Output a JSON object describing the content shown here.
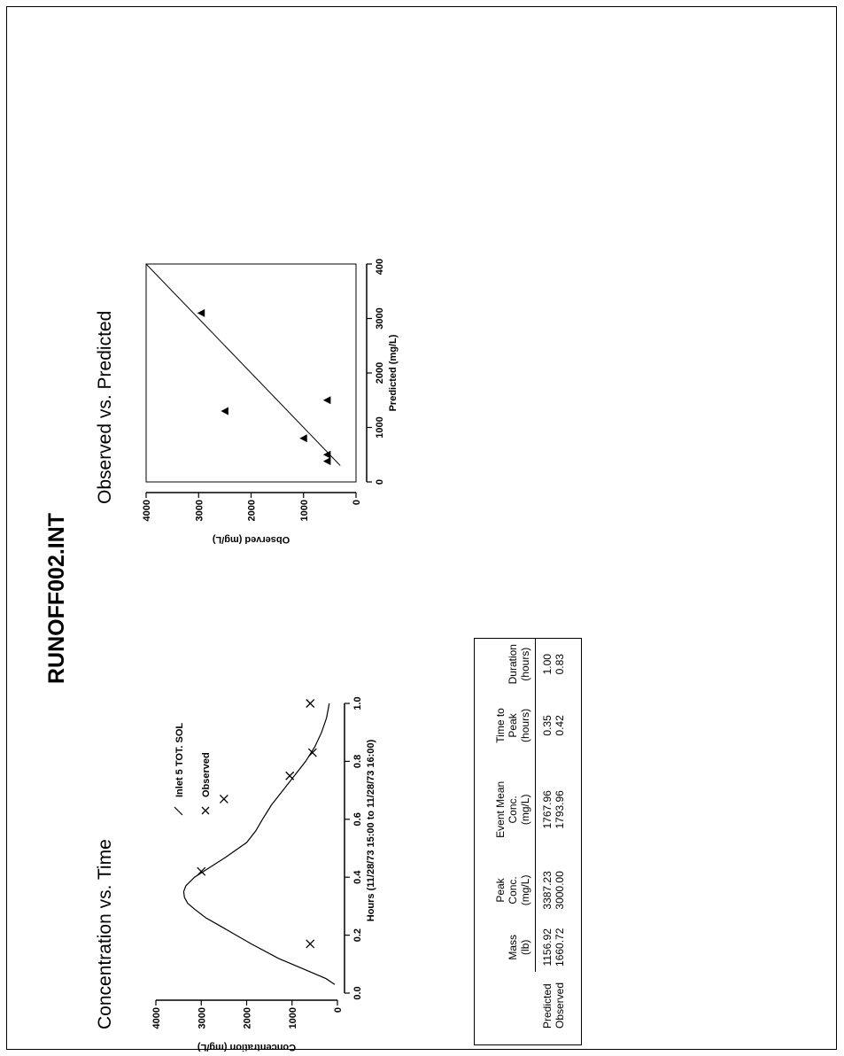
{
  "page": {
    "main_title": "RUNOFF002.INT"
  },
  "chart_data": [
    {
      "type": "line",
      "title": "Concentration vs. Time",
      "xlabel": "Hours (11/28/73 15:00 to 11/28/73 16:00)",
      "ylabel": "Concentration (mg/L)",
      "xlim": [
        0.0,
        1.0
      ],
      "ylim": [
        0,
        4000
      ],
      "x_ticks": [
        "0.0",
        "0.2",
        "0.4",
        "0.6",
        "0.8",
        "1.0"
      ],
      "y_ticks": [
        "0",
        "1000",
        "2000",
        "3000",
        "4000"
      ],
      "legend": [
        "Inlet 5 TOT. SOL",
        "Observed"
      ],
      "series": [
        {
          "name": "Inlet 5 TOT. SOL",
          "style": "line",
          "x": [
            0.03,
            0.05,
            0.08,
            0.12,
            0.17,
            0.22,
            0.26,
            0.29,
            0.31,
            0.33,
            0.35,
            0.37,
            0.4,
            0.43,
            0.47,
            0.52,
            0.56,
            0.6,
            0.65,
            0.7,
            0.75,
            0.8,
            0.85,
            0.9,
            0.95,
            1.0
          ],
          "y": [
            60,
            250,
            700,
            1300,
            1900,
            2450,
            2900,
            3150,
            3300,
            3370,
            3387,
            3340,
            3150,
            2850,
            2450,
            2000,
            1800,
            1650,
            1450,
            1200,
            950,
            700,
            500,
            350,
            240,
            180
          ]
        },
        {
          "name": "Observed",
          "style": "marker",
          "marker": "x",
          "x": [
            0.17,
            0.42,
            0.67,
            0.75,
            0.83,
            1.0
          ],
          "y": [
            600,
            3000,
            2500,
            1050,
            550,
            600
          ]
        }
      ]
    },
    {
      "type": "scatter",
      "title": "Observed vs. Predicted",
      "xlabel": "Predicted (mg/L)",
      "ylabel": "Observed (mg/L)",
      "xlim": [
        0,
        4000
      ],
      "ylim": [
        0,
        4000
      ],
      "x_ticks": [
        "0",
        "1000",
        "2000",
        "3000",
        "4000"
      ],
      "y_ticks": [
        "0",
        "1000",
        "2000",
        "3000",
        "4000"
      ],
      "series": [
        {
          "style": "marker",
          "marker": "triangle",
          "x": [
            3100,
            1300,
            1500,
            800,
            500,
            380
          ],
          "y": [
            2950,
            2500,
            550,
            1000,
            550,
            550
          ]
        },
        {
          "style": "line",
          "x": [
            300,
            4000
          ],
          "y": [
            300,
            4000
          ]
        }
      ]
    }
  ],
  "summary_table": {
    "columns": [
      {
        "l1": "Mass",
        "l2": "(lb)"
      },
      {
        "l1": "Peak Conc.",
        "l2": "(mg/L)"
      },
      {
        "l1": "Event Mean Conc.",
        "l2": "(mg/L)"
      },
      {
        "l1": "Time to Peak",
        "l2": "(hours)"
      },
      {
        "l1": "Duration",
        "l2": "(hours)"
      }
    ],
    "rows": [
      {
        "label": "Predicted",
        "values": [
          "1156.92",
          "3387.23",
          "1767.96",
          "0.35",
          "1.00"
        ]
      },
      {
        "label": "Observed",
        "values": [
          "1660.72",
          "3000.00",
          "1793.96",
          "0.42",
          "0.83"
        ]
      }
    ]
  }
}
